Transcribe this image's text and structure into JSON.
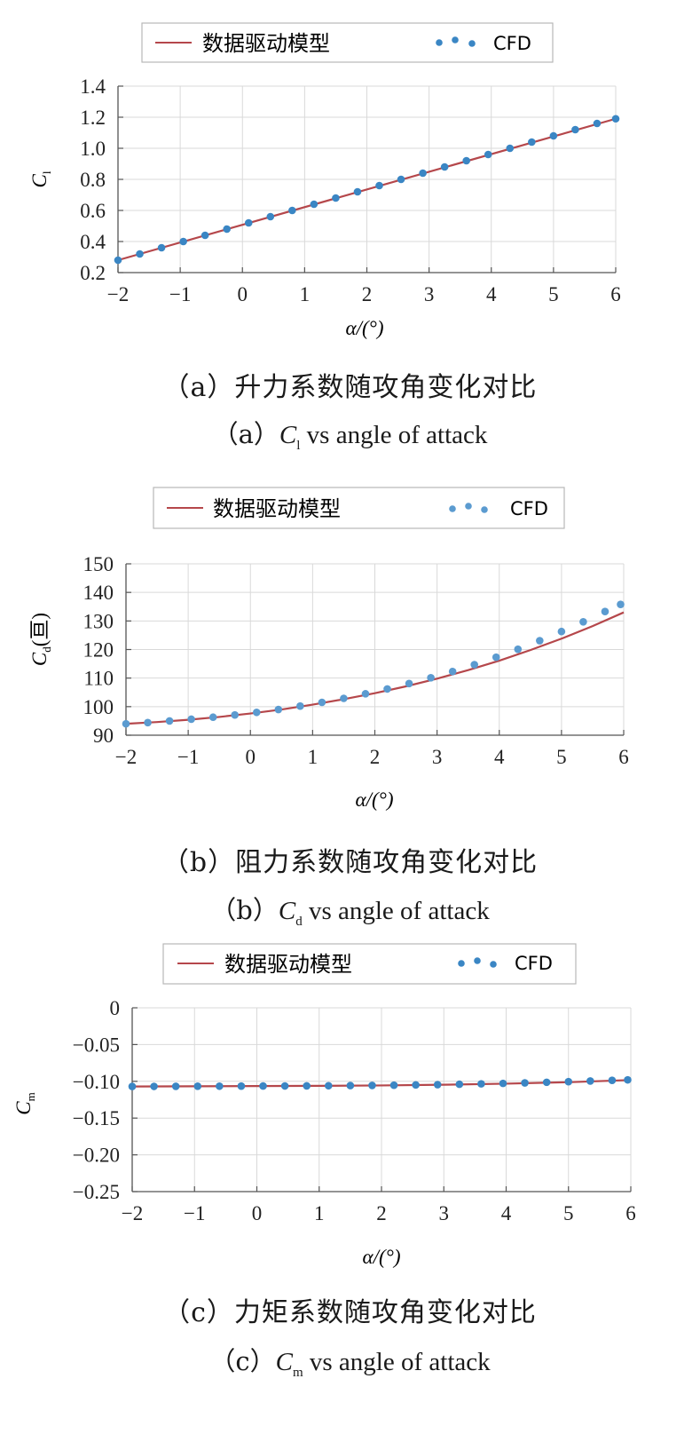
{
  "chart_data": [
    {
      "type": "line",
      "xlabel": "α/(°)",
      "ylabel": "C",
      "ylabel_sub": "l",
      "ylabel_suffix": "",
      "xlim": [
        -2,
        6
      ],
      "ylim": [
        0.2,
        1.4
      ],
      "xticks": [
        -2,
        -1,
        0,
        1,
        2,
        3,
        4,
        5,
        6
      ],
      "xtick_labels": [
        "−2",
        "−1",
        "0",
        "1",
        "2",
        "3",
        "4",
        "5",
        "6"
      ],
      "yticks": [
        0.2,
        0.4,
        0.6,
        0.8,
        1.0,
        1.2,
        1.4
      ],
      "ytick_labels": [
        "0.2",
        "0.4",
        "0.6",
        "0.8",
        "1.0",
        "1.2",
        "1.4"
      ],
      "legend": [
        "数据驱动模型",
        "CFD"
      ],
      "legend_position": "top-center",
      "grid": true,
      "series": [
        {
          "name": "数据驱动模型",
          "style": "line",
          "color": "#b5474b",
          "x": [
            -2.0,
            6.0
          ],
          "y": [
            0.28,
            1.19
          ]
        },
        {
          "name": "CFD",
          "style": "markers",
          "color": "#3a86c4",
          "x": [
            -2.0,
            -1.65,
            -1.3,
            -0.95,
            -0.6,
            -0.25,
            0.1,
            0.45,
            0.8,
            1.15,
            1.5,
            1.85,
            2.2,
            2.55,
            2.9,
            3.25,
            3.6,
            3.95,
            4.3,
            4.65,
            5.0,
            5.35,
            5.7,
            6.0
          ],
          "y": [
            0.28,
            0.32,
            0.36,
            0.4,
            0.44,
            0.48,
            0.52,
            0.56,
            0.6,
            0.64,
            0.68,
            0.72,
            0.76,
            0.8,
            0.84,
            0.88,
            0.92,
            0.96,
            1.0,
            1.04,
            1.08,
            1.12,
            1.16,
            1.19
          ]
        }
      ]
    },
    {
      "type": "line",
      "xlabel": "α/(°)",
      "ylabel": "C",
      "ylabel_sub": "d",
      "ylabel_suffix": "(亘)",
      "xlim": [
        -2,
        6
      ],
      "ylim": [
        90,
        150
      ],
      "xticks": [
        -2,
        -1,
        0,
        1,
        2,
        3,
        4,
        5,
        6
      ],
      "xtick_labels": [
        "−2",
        "−1",
        "0",
        "1",
        "2",
        "3",
        "4",
        "5",
        "6"
      ],
      "yticks": [
        90,
        100,
        110,
        120,
        130,
        140,
        150
      ],
      "ytick_labels": [
        "90",
        "100",
        "110",
        "120",
        "130",
        "140",
        "150"
      ],
      "legend": [
        "数据驱动模型",
        "CFD"
      ],
      "legend_position": "top-center",
      "grid": true,
      "series": [
        {
          "name": "数据驱动模型",
          "style": "line",
          "color": "#b5474b",
          "x": [
            -2.0,
            -1.5,
            -1.0,
            -0.5,
            0.0,
            0.5,
            1.0,
            1.5,
            2.0,
            2.5,
            3.0,
            3.5,
            4.0,
            4.5,
            5.0,
            5.5,
            6.0
          ],
          "y": [
            94.0,
            94.6,
            95.4,
            96.4,
            97.6,
            99.0,
            100.7,
            102.6,
            104.7,
            107.1,
            109.8,
            112.8,
            116.1,
            119.8,
            123.8,
            128.2,
            133.0
          ]
        },
        {
          "name": "CFD",
          "style": "markers",
          "color": "#5b9bd0",
          "x": [
            -2.0,
            -1.65,
            -1.3,
            -0.95,
            -0.6,
            -0.25,
            0.1,
            0.45,
            0.8,
            1.15,
            1.5,
            1.85,
            2.2,
            2.55,
            2.9,
            3.25,
            3.6,
            3.95,
            4.3,
            4.65,
            5.0,
            5.35,
            5.7,
            5.95
          ],
          "y": [
            94.0,
            94.4,
            95.0,
            95.6,
            96.3,
            97.1,
            98.0,
            99.0,
            100.2,
            101.5,
            102.9,
            104.5,
            106.2,
            108.1,
            110.1,
            112.3,
            114.7,
            117.3,
            120.1,
            123.1,
            126.3,
            129.7,
            133.3,
            135.8
          ]
        }
      ]
    },
    {
      "type": "line",
      "xlabel": "α/(°)",
      "ylabel": "C",
      "ylabel_sub": "m",
      "ylabel_suffix": "",
      "xlim": [
        -2,
        6
      ],
      "ylim": [
        -0.25,
        0
      ],
      "xticks": [
        -2,
        -1,
        0,
        1,
        2,
        3,
        4,
        5,
        6
      ],
      "xtick_labels": [
        "−2",
        "−1",
        "0",
        "1",
        "2",
        "3",
        "4",
        "5",
        "6"
      ],
      "yticks": [
        -0.25,
        -0.2,
        -0.15,
        -0.1,
        -0.05,
        0
      ],
      "ytick_labels": [
        "−0.25",
        "−0.20",
        "−0.15",
        "−0.10",
        "−0.05",
        "0"
      ],
      "legend": [
        "数据驱动模型",
        "CFD"
      ],
      "legend_position": "top-center",
      "grid": true,
      "series": [
        {
          "name": "数据驱动模型",
          "style": "line",
          "color": "#b5474b",
          "x": [
            -2.0,
            -1.0,
            0.0,
            1.0,
            2.0,
            3.0,
            4.0,
            5.0,
            6.0
          ],
          "y": [
            -0.107,
            -0.1067,
            -0.1064,
            -0.1061,
            -0.1056,
            -0.1046,
            -0.1032,
            -0.1012,
            -0.0982
          ]
        },
        {
          "name": "CFD",
          "style": "markers",
          "color": "#3a86c4",
          "x": [
            -2.0,
            -1.65,
            -1.3,
            -0.95,
            -0.6,
            -0.25,
            0.1,
            0.45,
            0.8,
            1.15,
            1.5,
            1.85,
            2.2,
            2.55,
            2.9,
            3.25,
            3.6,
            3.95,
            4.3,
            4.65,
            5.0,
            5.35,
            5.7,
            5.95
          ],
          "y": [
            -0.107,
            -0.1069,
            -0.1068,
            -0.1067,
            -0.1066,
            -0.1065,
            -0.1064,
            -0.1063,
            -0.1062,
            -0.106,
            -0.1058,
            -0.1056,
            -0.1053,
            -0.1049,
            -0.1045,
            -0.104,
            -0.1034,
            -0.1028,
            -0.1021,
            -0.1013,
            -0.1005,
            -0.0996,
            -0.0987,
            -0.098
          ]
        }
      ]
    }
  ],
  "captions": [
    {
      "cn": "（a）升力系数随攻角变化对比",
      "en_prefix": "（a）",
      "en_symbol": "C",
      "en_sub": "l",
      "en_rest": " vs angle of attack"
    },
    {
      "cn": "（b）阻力系数随攻角变化对比",
      "en_prefix": "（b）",
      "en_symbol": "C",
      "en_sub": "d",
      "en_rest": " vs angle of attack"
    },
    {
      "cn": "（c）力矩系数随攻角变化对比",
      "en_prefix": "（c）",
      "en_symbol": "C",
      "en_sub": "m",
      "en_rest": " vs angle of attack"
    }
  ],
  "colors": {
    "grid": "#d9d9d9",
    "axis": "#555555",
    "model": "#b5474b",
    "cfd": "#3a86c4"
  }
}
